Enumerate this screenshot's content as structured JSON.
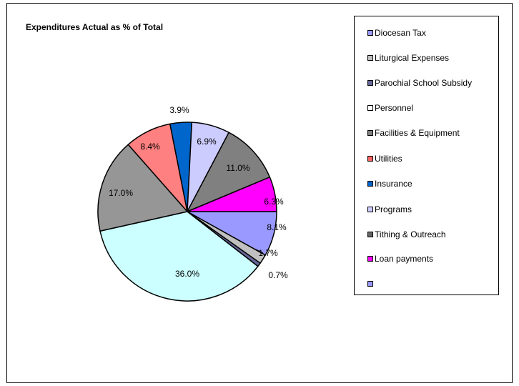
{
  "chart_data": {
    "type": "pie",
    "title": "Expenditures Actual as % of Total",
    "legend_position": "right",
    "slices": [
      {
        "name": "Diocesan Tax",
        "value": 8.1,
        "label": "8.1%",
        "color": "#9999ff"
      },
      {
        "name": "Liturgical Expenses",
        "value": 1.7,
        "label": "1.7%",
        "color": "#c0c0c0"
      },
      {
        "name": "Parochial School Subsidy",
        "value": 0.7,
        "label": "0.7%",
        "color": "#666699"
      },
      {
        "name": "Personnel",
        "value": 36.0,
        "label": "36.0%",
        "color": "#ccffff"
      },
      {
        "name": "Facilities & Equipment",
        "value": 17.0,
        "label": "17.0%",
        "color": "#969696"
      },
      {
        "name": "Utilities",
        "value": 8.4,
        "label": "8.4%",
        "color": "#ff8080"
      },
      {
        "name": "Insurance",
        "value": 3.9,
        "label": "3.9%",
        "color": "#0066cc"
      },
      {
        "name": "Programs",
        "value": 6.9,
        "label": "6.9%",
        "color": "#ccccff"
      },
      {
        "name": "Tithing & Outreach",
        "value": 11.0,
        "label": "11.0%",
        "color": "#808080"
      },
      {
        "name": "Loan payments",
        "value": 6.3,
        "label": "6.3%",
        "color": "#ff00ff"
      }
    ],
    "legend": [
      {
        "label": "Diocesan Tax",
        "color": "#9999ff"
      },
      {
        "label": "Liturgical Expenses",
        "color": "#c0c0c0"
      },
      {
        "label": "Parochial School Subsidy",
        "color": "#666699"
      },
      {
        "label": "Personnel",
        "color": "#ffffff"
      },
      {
        "label": "Facilities & Equipment",
        "color": "#808080"
      },
      {
        "label": "Utilities",
        "color": "#ff6666"
      },
      {
        "label": "Insurance",
        "color": "#0066cc"
      },
      {
        "label": "Programs",
        "color": "#ccccff"
      },
      {
        "label": "Tithing & Outreach",
        "color": "#666666"
      },
      {
        "label": "Loan payments",
        "color": "#ff00ff"
      },
      {
        "label": "",
        "color": "#9999ff"
      }
    ]
  }
}
